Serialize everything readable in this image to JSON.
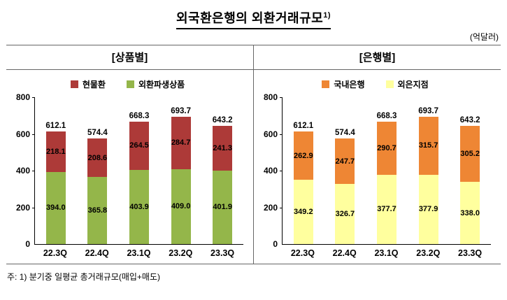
{
  "title": "외국환은행의 외환거래규모",
  "title_sup": "1)",
  "unit_label": "(억달러)",
  "footnote": "주: 1) 분기중 일평균 총거래규모(매입+매도)",
  "chart_data": [
    {
      "type": "bar",
      "stacked": true,
      "panel_title": "[상품별]",
      "categories": [
        "22.3Q",
        "22.4Q",
        "23.1Q",
        "23.2Q",
        "23.3Q"
      ],
      "series": [
        {
          "name": "현물환",
          "color": "#ad3a38",
          "values": [
            218.1,
            208.6,
            264.5,
            284.7,
            241.3
          ]
        },
        {
          "name": "외환파생상품",
          "color": "#94b64a",
          "values": [
            394.0,
            365.8,
            403.9,
            409.0,
            401.9
          ]
        }
      ],
      "totals": [
        612.1,
        574.4,
        668.3,
        693.7,
        643.2
      ],
      "ylim": [
        0,
        800
      ],
      "yticks": [
        0,
        200,
        400,
        600,
        800
      ],
      "legend_position": "top",
      "grid": false
    },
    {
      "type": "bar",
      "stacked": true,
      "panel_title": "[은행별]",
      "categories": [
        "22.3Q",
        "22.4Q",
        "23.1Q",
        "23.2Q",
        "23.3Q"
      ],
      "series": [
        {
          "name": "국내은행",
          "color": "#ee8634",
          "values": [
            262.9,
            247.7,
            290.7,
            315.7,
            305.2
          ]
        },
        {
          "name": "외은지점",
          "color": "#ffff9e",
          "values": [
            349.2,
            326.7,
            377.7,
            377.9,
            338.0
          ]
        }
      ],
      "totals": [
        612.1,
        574.4,
        668.3,
        693.7,
        643.2
      ],
      "ylim": [
        0,
        800
      ],
      "yticks": [
        0,
        200,
        400,
        600,
        800
      ],
      "legend_position": "top",
      "grid": false
    }
  ]
}
